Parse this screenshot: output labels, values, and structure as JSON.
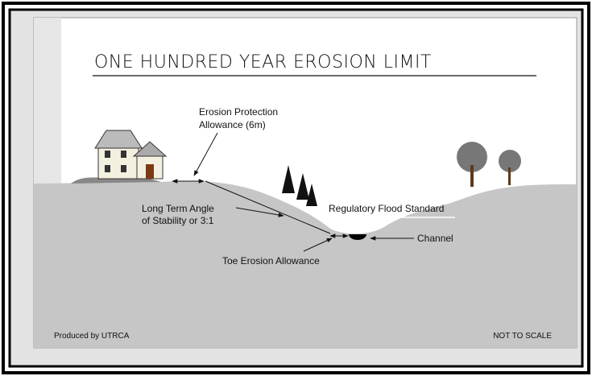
{
  "title": "ONE HUNDRED YEAR EROSION LIMIT",
  "labels": {
    "erosion_protection": [
      "Erosion Protection",
      "Allowance (6m)"
    ],
    "long_term_angle": [
      "Long Term Angle",
      "of Stability or 3:1"
    ],
    "flood_standard": "Regulatory Flood Standard",
    "channel": "Channel",
    "toe_erosion": "Toe Erosion Allowance"
  },
  "footer": {
    "credit": "Produced by UTRCA",
    "scale_note": "NOT TO SCALE"
  }
}
